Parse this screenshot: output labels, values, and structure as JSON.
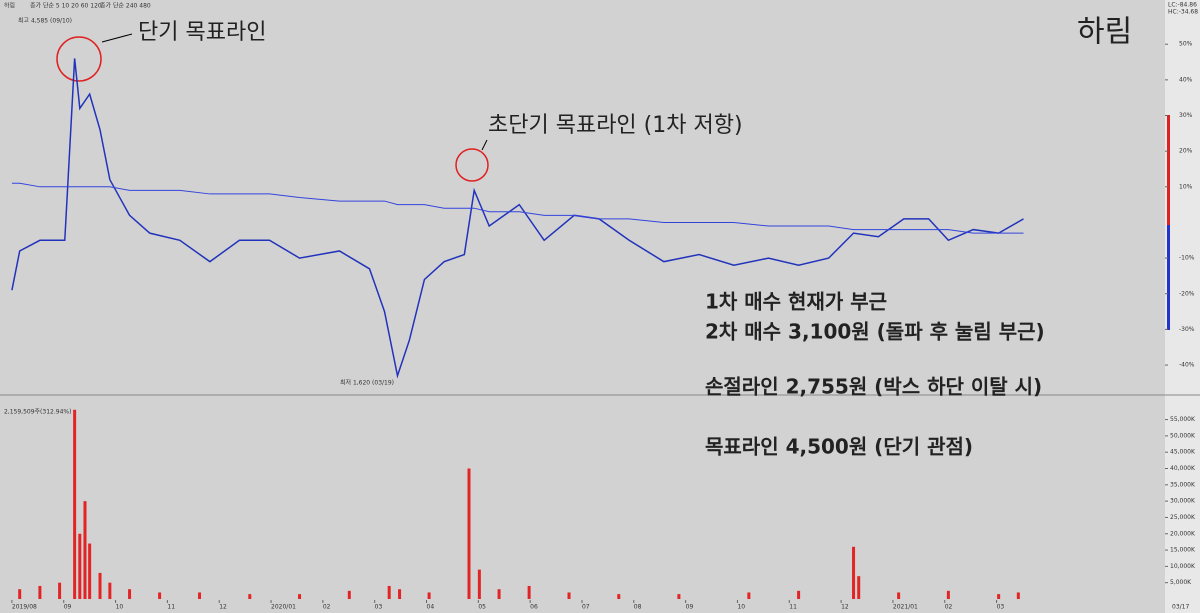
{
  "chart_data": [
    {
      "type": "line",
      "title": "하림",
      "legend": [
        "하림",
        "종가 단순 5 10 20 60 120",
        "종가 단순 240 480"
      ],
      "high_label": "최고 4,585 (09/10)",
      "low_label": "최저 1,620 (03/19)",
      "corner_labels": [
        "LC:-84.86",
        "HC:-34.68"
      ],
      "xlim": [
        -0.23,
        22.25
      ],
      "ylim": [
        -47,
        61
      ],
      "xticks": [
        {
          "value": 0,
          "label": "2019/08"
        },
        {
          "value": 1,
          "label": "09"
        },
        {
          "value": 2,
          "label": "10"
        },
        {
          "value": 3,
          "label": "11"
        },
        {
          "value": 4,
          "label": "12"
        },
        {
          "value": 5,
          "label": "2020/01"
        },
        {
          "value": 6,
          "label": "02"
        },
        {
          "value": 7,
          "label": "03"
        },
        {
          "value": 8,
          "label": "04"
        },
        {
          "value": 9,
          "label": "05"
        },
        {
          "value": 10,
          "label": "06"
        },
        {
          "value": 11,
          "label": "07"
        },
        {
          "value": 12,
          "label": "08"
        },
        {
          "value": 13,
          "label": "09"
        },
        {
          "value": 14,
          "label": "10"
        },
        {
          "value": 15,
          "label": "11"
        },
        {
          "value": 16,
          "label": "12"
        },
        {
          "value": 17,
          "label": "2021/01"
        },
        {
          "value": 18,
          "label": "02"
        },
        {
          "value": 19,
          "label": "03"
        }
      ],
      "last_date": "03/17",
      "yticks": [
        {
          "value": 50,
          "label": "50%"
        },
        {
          "value": 40,
          "label": "40%"
        },
        {
          "value": 30,
          "label": "30%"
        },
        {
          "value": 20,
          "label": "20%"
        },
        {
          "value": 10,
          "label": "10%"
        },
        {
          "value": -10,
          "label": "-10%"
        },
        {
          "value": -20,
          "label": "-20%"
        },
        {
          "value": -30,
          "label": "-30%"
        },
        {
          "value": -40,
          "label": "-40%"
        }
      ],
      "x": [
        0,
        0.15,
        0.54,
        1.02,
        1.21,
        1.31,
        1.5,
        1.7,
        1.89,
        2.27,
        2.66,
        3.24,
        3.82,
        4.39,
        4.97,
        5.55,
        6.32,
        6.9,
        7.19,
        7.44,
        7.67,
        7.96,
        8.34,
        8.73,
        8.92,
        9.21,
        9.79,
        10.27,
        10.85,
        11.33,
        11.91,
        12.58,
        13.26,
        13.93,
        14.6,
        15.18,
        15.76,
        16.24,
        16.72,
        17.21,
        17.69,
        18.07,
        18.55,
        19.04,
        19.52
      ],
      "series": [
        {
          "name": "종가",
          "color": "#2233bb",
          "values": [
            -19,
            -8,
            -5,
            -5,
            46,
            32,
            36,
            26,
            12,
            2,
            -3,
            -5,
            -11,
            -5,
            -5,
            -10,
            -8,
            -13,
            -25,
            -43,
            -33,
            -16,
            -11,
            -9,
            9,
            -1,
            5,
            -5,
            2,
            1,
            -5,
            -11,
            -9,
            -12,
            -10,
            -12,
            -10,
            -3,
            -4,
            1,
            1,
            -5,
            -2,
            -3,
            1
          ]
        },
        {
          "name": "480",
          "color": "#3344dd",
          "values": [
            11,
            11,
            10,
            10,
            10,
            10,
            10,
            10,
            10,
            9,
            9,
            9,
            8,
            8,
            8,
            7,
            6,
            6,
            6,
            5,
            5,
            5,
            4,
            4,
            4,
            3,
            3,
            2,
            2,
            1,
            1,
            0,
            0,
            0,
            -1,
            -1,
            -1,
            -2,
            -2,
            -2,
            -2,
            -2,
            -3,
            -3,
            -3
          ]
        }
      ]
    },
    {
      "type": "bar",
      "legend": "2,159,509주(312.94%)",
      "xlim": [
        -0.23,
        22.25
      ],
      "ylim": [
        0,
        61000
      ],
      "yticks": [
        {
          "value": 5000,
          "label": "5,000K"
        },
        {
          "value": 10000,
          "label": "10,000K"
        },
        {
          "value": 15000,
          "label": "15,000K"
        },
        {
          "value": 20000,
          "label": "20,000K"
        },
        {
          "value": 25000,
          "label": "25,000K"
        },
        {
          "value": 30000,
          "label": "30,000K"
        },
        {
          "value": 35000,
          "label": "35,000K"
        },
        {
          "value": 40000,
          "label": "40,000K"
        },
        {
          "value": 45000,
          "label": "45,000K"
        },
        {
          "value": 50000,
          "label": "50,000K"
        },
        {
          "value": 55000,
          "label": "55,000K"
        }
      ],
      "color": "#e22424",
      "x": [
        0.15,
        0.54,
        0.92,
        1.21,
        1.31,
        1.41,
        1.5,
        1.7,
        1.89,
        2.27,
        2.85,
        3.62,
        4.59,
        5.55,
        6.51,
        7.28,
        7.48,
        8.05,
        8.82,
        9.02,
        9.4,
        9.98,
        10.75,
        11.71,
        12.87,
        14.22,
        15.18,
        16.24,
        16.34,
        17.11,
        18.07,
        19.04,
        19.42
      ],
      "values": [
        3000,
        4000,
        5000,
        58000,
        20000,
        30000,
        17000,
        8000,
        5000,
        3000,
        2000,
        2000,
        1500,
        1500,
        2500,
        4000,
        3000,
        2000,
        40000,
        9000,
        3000,
        4000,
        2000,
        1500,
        1500,
        2000,
        2500,
        16000,
        7000,
        2000,
        2500,
        1500,
        2000
      ]
    }
  ],
  "annotations": {
    "short_target": "단기 목표라인",
    "very_short_target": "초단기 목표라인 (1차 저항)",
    "plan": [
      "1차 매수 현재가 부근",
      "2차 매수 3,100원 (돌파 후 눌림 부근)",
      "손절라인 2,755원 (박스 하단 이탈 시)",
      "목표라인 4,500원 (단기 관점)"
    ]
  }
}
